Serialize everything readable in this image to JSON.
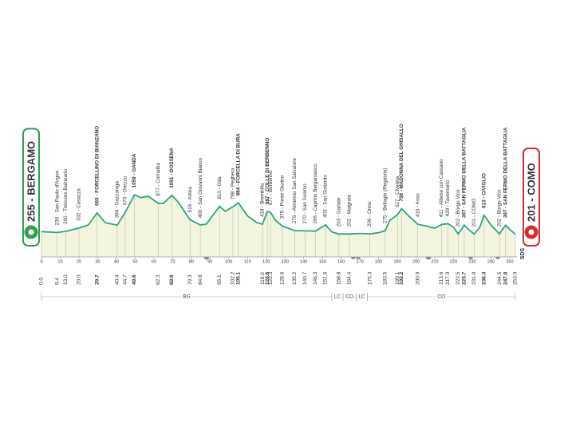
{
  "chart_data": {
    "type": "area",
    "color": "#2ea57c",
    "fill": "#f4f5df",
    "xlim": [
      0,
      253
    ],
    "ylim": [
      -300,
      1100
    ],
    "xticks": [
      0,
      10,
      20,
      30,
      40,
      50,
      60,
      70,
      80,
      90,
      100,
      110,
      120,
      130,
      140,
      150,
      160,
      170,
      180,
      190,
      200,
      210,
      220,
      230,
      240,
      250
    ],
    "x": [
      0,
      8.4,
      13,
      20,
      25,
      29.7,
      34,
      40.4,
      44.7,
      49.6,
      53,
      57,
      62.3,
      65,
      69.6,
      73,
      79.3,
      84.8,
      88,
      95.1,
      98,
      102.2,
      105.1,
      110,
      115,
      118,
      120.6,
      122.3,
      125,
      128.6,
      135.2,
      140.7,
      146.3,
      151.6,
      155,
      158.8,
      164.4,
      170,
      175.3,
      180,
      183.5,
      186,
      190.1,
      192.2,
      196,
      200.9,
      205,
      210,
      213.6,
      217,
      220,
      222.5,
      225.7,
      228,
      231,
      234,
      236.3,
      240,
      244.5,
      247.8,
      250,
      253
    ],
    "values": [
      255,
      236,
      260,
      332,
      400,
      665,
      450,
      394,
      675,
      1059,
      1000,
      1030,
      877,
      870,
      1051,
      900,
      516,
      400,
      420,
      810,
      700,
      798,
      884,
      600,
      450,
      418,
      697,
      677,
      500,
      375,
      276,
      270,
      266,
      403,
      250,
      203,
      202,
      215,
      206,
      230,
      275,
      500,
      627,
      758,
      600,
      416,
      380,
      330,
      411,
      429,
      350,
      202,
      397,
      300,
      201,
      350,
      613,
      400,
      202,
      397,
      300,
      201
    ],
    "waypoints": [
      {
        "name": "255 - BERGAMO",
        "km": {
          "value": 0,
          "label": "0.0"
        },
        "badge": "#2e9e4f"
      },
      {
        "name": "236 - San Paolo d'Argon",
        "km": 8.4
      },
      {
        "name": "260 - Trescore Balneario",
        "km": {
          "value": 13,
          "label": "13.0"
        }
      },
      {
        "name": "332 - Casazza",
        "km": {
          "value": 20,
          "label": "20.0"
        }
      },
      {
        "name": "665 - FORCELLINO DI BIANZANO",
        "km": 29.7,
        "climb": true
      },
      {
        "name": "394 - Gazzaniga",
        "km": 40.4
      },
      {
        "name": "675 - Orezzo",
        "km": 44.7
      },
      {
        "name": "1059 - GANDA",
        "km": 49.6,
        "climb": true
      },
      {
        "name": "877 - Cornalba",
        "km": 62.3
      },
      {
        "name": "1051 - DOSSENA",
        "km": 69.6,
        "climb": true
      },
      {
        "name": "516 - Antea",
        "km": 79.3
      },
      {
        "name": "400 - San Giovanni Bianco",
        "km": 84.8
      },
      {
        "name": "810 - Oda",
        "km": 95.1
      },
      {
        "name": "798 - Peghera",
        "km": 102.2
      },
      {
        "name": "884 - FORCELLA DI BURA",
        "km": 105.1,
        "climb": true
      },
      {
        "name": "418 - Brembilla",
        "km": {
          "value": 118,
          "label": "118.0"
        }
      },
      {
        "name": "697 - COLLE DI BERBENNO",
        "km": 120.6,
        "climb": true
      },
      {
        "name": "677 - Berbenno",
        "km": 122.3
      },
      {
        "name": "375 - Ponte Giurino",
        "km": 128.6
      },
      {
        "name": "276 - Almenno San Salvatore",
        "km": 135.2
      },
      {
        "name": "270 - San Sosimo",
        "km": 140.7
      },
      {
        "name": "266 - Caprino Bergamasco",
        "km": 146.3
      },
      {
        "name": "403 - San Gottardo",
        "km": 151.6
      },
      {
        "name": "203 - Garlate",
        "km": 158.8
      },
      {
        "name": "202 - Malgrate",
        "km": 164.4
      },
      {
        "name": "206 - Onno",
        "km": 175.3
      },
      {
        "name": "275 - Bellagio (Regatola)",
        "km": 183.5
      },
      {
        "name": "627 - Civenna",
        "km": 190.1
      },
      {
        "name": "758 - MADONNA DEL GHISALLO",
        "km": 192.2,
        "climb": true
      },
      {
        "name": "416 - Asso",
        "km": 200.9
      },
      {
        "name": "411 - Albese con Cassano",
        "km": 213.6
      },
      {
        "name": "429 - Tavernerio",
        "km": {
          "value": 217,
          "label": "217.0"
        }
      },
      {
        "name": "202 - Borgo Vico",
        "km": 222.5
      },
      {
        "name": "397 - SAN FERMO DELLA BATTAGLIA",
        "km": 225.7,
        "climb": true
      },
      {
        "name": "201 - COMO",
        "km": {
          "value": 231,
          "label": "231.0"
        }
      },
      {
        "name": "613 - CIVIGLIO",
        "km": 236.3,
        "climb": true
      },
      {
        "name": "202 - Borgo Vico",
        "km": 244.5
      },
      {
        "name": "397 - SAN FERMO DELLA BATTAGLIA",
        "km": 247.8,
        "climb": true
      },
      {
        "name": "201 - COMO",
        "km": {
          "value": 253,
          "label": "253.0"
        },
        "badge": "#d32f2f"
      }
    ],
    "regions": [
      {
        "name": "BG",
        "from": 0,
        "to": 155
      },
      {
        "name": "LC",
        "from": 155,
        "to": 161
      },
      {
        "name": "CO",
        "from": 161,
        "to": 168
      },
      {
        "name": "LC",
        "from": 168,
        "to": 174
      },
      {
        "name": "CO",
        "from": 174,
        "to": 253
      }
    ],
    "logo": "SDS"
  }
}
